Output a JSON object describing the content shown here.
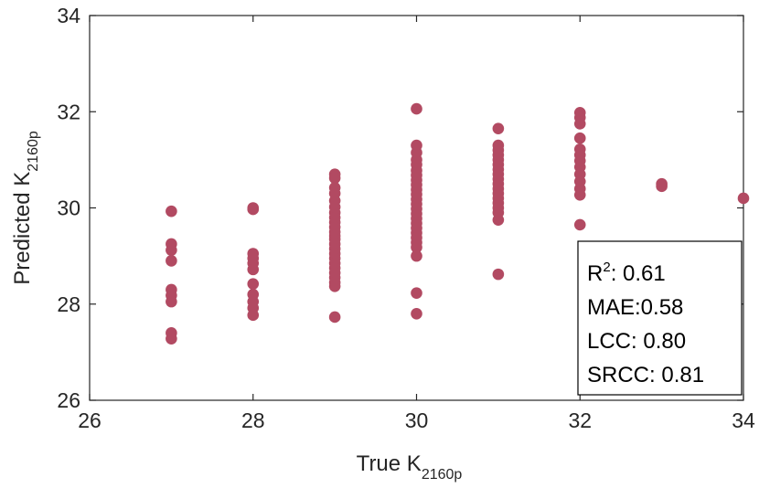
{
  "chart_data": {
    "type": "scatter",
    "title": "",
    "xlabel_main": "True K",
    "xlabel_sub": "2160p",
    "ylabel_main": "Predicted K",
    "ylabel_sub": "2160p",
    "xlim": [
      26,
      34
    ],
    "ylim": [
      26,
      34
    ],
    "xticks": [
      "26",
      "28",
      "30",
      "32",
      "34"
    ],
    "yticks": [
      "26",
      "28",
      "30",
      "32",
      "34"
    ],
    "grid": false,
    "marker_color": "#B24A62",
    "stats": {
      "r2_prefix": "R",
      "r2_sup": "2",
      "r2_value": ": 0.61",
      "mae": "MAE:0.58",
      "lcc": "LCC: 0.80",
      "srcc": "SRCC: 0.81",
      "placement": "bottom-right"
    },
    "points": [
      [
        27,
        29.93
      ],
      [
        27,
        29.25
      ],
      [
        27,
        29.12
      ],
      [
        27,
        28.9
      ],
      [
        27,
        28.3
      ],
      [
        27,
        28.18
      ],
      [
        27,
        28.05
      ],
      [
        27,
        27.4
      ],
      [
        27,
        27.28
      ],
      [
        28,
        30.0
      ],
      [
        28,
        29.97
      ],
      [
        28,
        29.05
      ],
      [
        28,
        28.95
      ],
      [
        28,
        28.85
      ],
      [
        28,
        28.72
      ],
      [
        28,
        28.42
      ],
      [
        28,
        28.2
      ],
      [
        28,
        28.05
      ],
      [
        28,
        27.92
      ],
      [
        28,
        27.77
      ],
      [
        29,
        30.7
      ],
      [
        29,
        30.62
      ],
      [
        29,
        30.42
      ],
      [
        29,
        30.3
      ],
      [
        29,
        30.15
      ],
      [
        29,
        30.02
      ],
      [
        29,
        29.9
      ],
      [
        29,
        29.8
      ],
      [
        29,
        29.7
      ],
      [
        29,
        29.6
      ],
      [
        29,
        29.5
      ],
      [
        29,
        29.42
      ],
      [
        29,
        29.35
      ],
      [
        29,
        29.25
      ],
      [
        29,
        29.15
      ],
      [
        29,
        29.05
      ],
      [
        29,
        28.95
      ],
      [
        29,
        28.85
      ],
      [
        29,
        28.75
      ],
      [
        29,
        28.65
      ],
      [
        29,
        28.55
      ],
      [
        29,
        28.45
      ],
      [
        29,
        28.37
      ],
      [
        29,
        27.73
      ],
      [
        30,
        32.06
      ],
      [
        30,
        31.3
      ],
      [
        30,
        31.15
      ],
      [
        30,
        31.0
      ],
      [
        30,
        30.9
      ],
      [
        30,
        30.78
      ],
      [
        30,
        30.68
      ],
      [
        30,
        30.58
      ],
      [
        30,
        30.48
      ],
      [
        30,
        30.38
      ],
      [
        30,
        30.28
      ],
      [
        30,
        30.18
      ],
      [
        30,
        30.08
      ],
      [
        30,
        29.98
      ],
      [
        30,
        29.88
      ],
      [
        30,
        29.78
      ],
      [
        30,
        29.68
      ],
      [
        30,
        29.58
      ],
      [
        30,
        29.48
      ],
      [
        30,
        29.38
      ],
      [
        30,
        29.28
      ],
      [
        30,
        29.18
      ],
      [
        30,
        29.0
      ],
      [
        30,
        28.23
      ],
      [
        30,
        27.8
      ],
      [
        31,
        31.65
      ],
      [
        31,
        31.3
      ],
      [
        31,
        31.2
      ],
      [
        31,
        31.1
      ],
      [
        31,
        31.0
      ],
      [
        31,
        30.9
      ],
      [
        31,
        30.8
      ],
      [
        31,
        30.7
      ],
      [
        31,
        30.6
      ],
      [
        31,
        30.5
      ],
      [
        31,
        30.4
      ],
      [
        31,
        30.3
      ],
      [
        31,
        30.2
      ],
      [
        31,
        30.1
      ],
      [
        31,
        30.0
      ],
      [
        31,
        29.9
      ],
      [
        31,
        29.75
      ],
      [
        31,
        28.62
      ],
      [
        32,
        31.98
      ],
      [
        32,
        31.88
      ],
      [
        32,
        31.75
      ],
      [
        32,
        31.45
      ],
      [
        32,
        31.22
      ],
      [
        32,
        31.1
      ],
      [
        32,
        30.98
      ],
      [
        32,
        30.85
      ],
      [
        32,
        30.7
      ],
      [
        32,
        30.55
      ],
      [
        32,
        30.4
      ],
      [
        32,
        30.27
      ],
      [
        32,
        29.65
      ],
      [
        33,
        30.5
      ],
      [
        33,
        30.45
      ],
      [
        34,
        30.2
      ]
    ]
  }
}
